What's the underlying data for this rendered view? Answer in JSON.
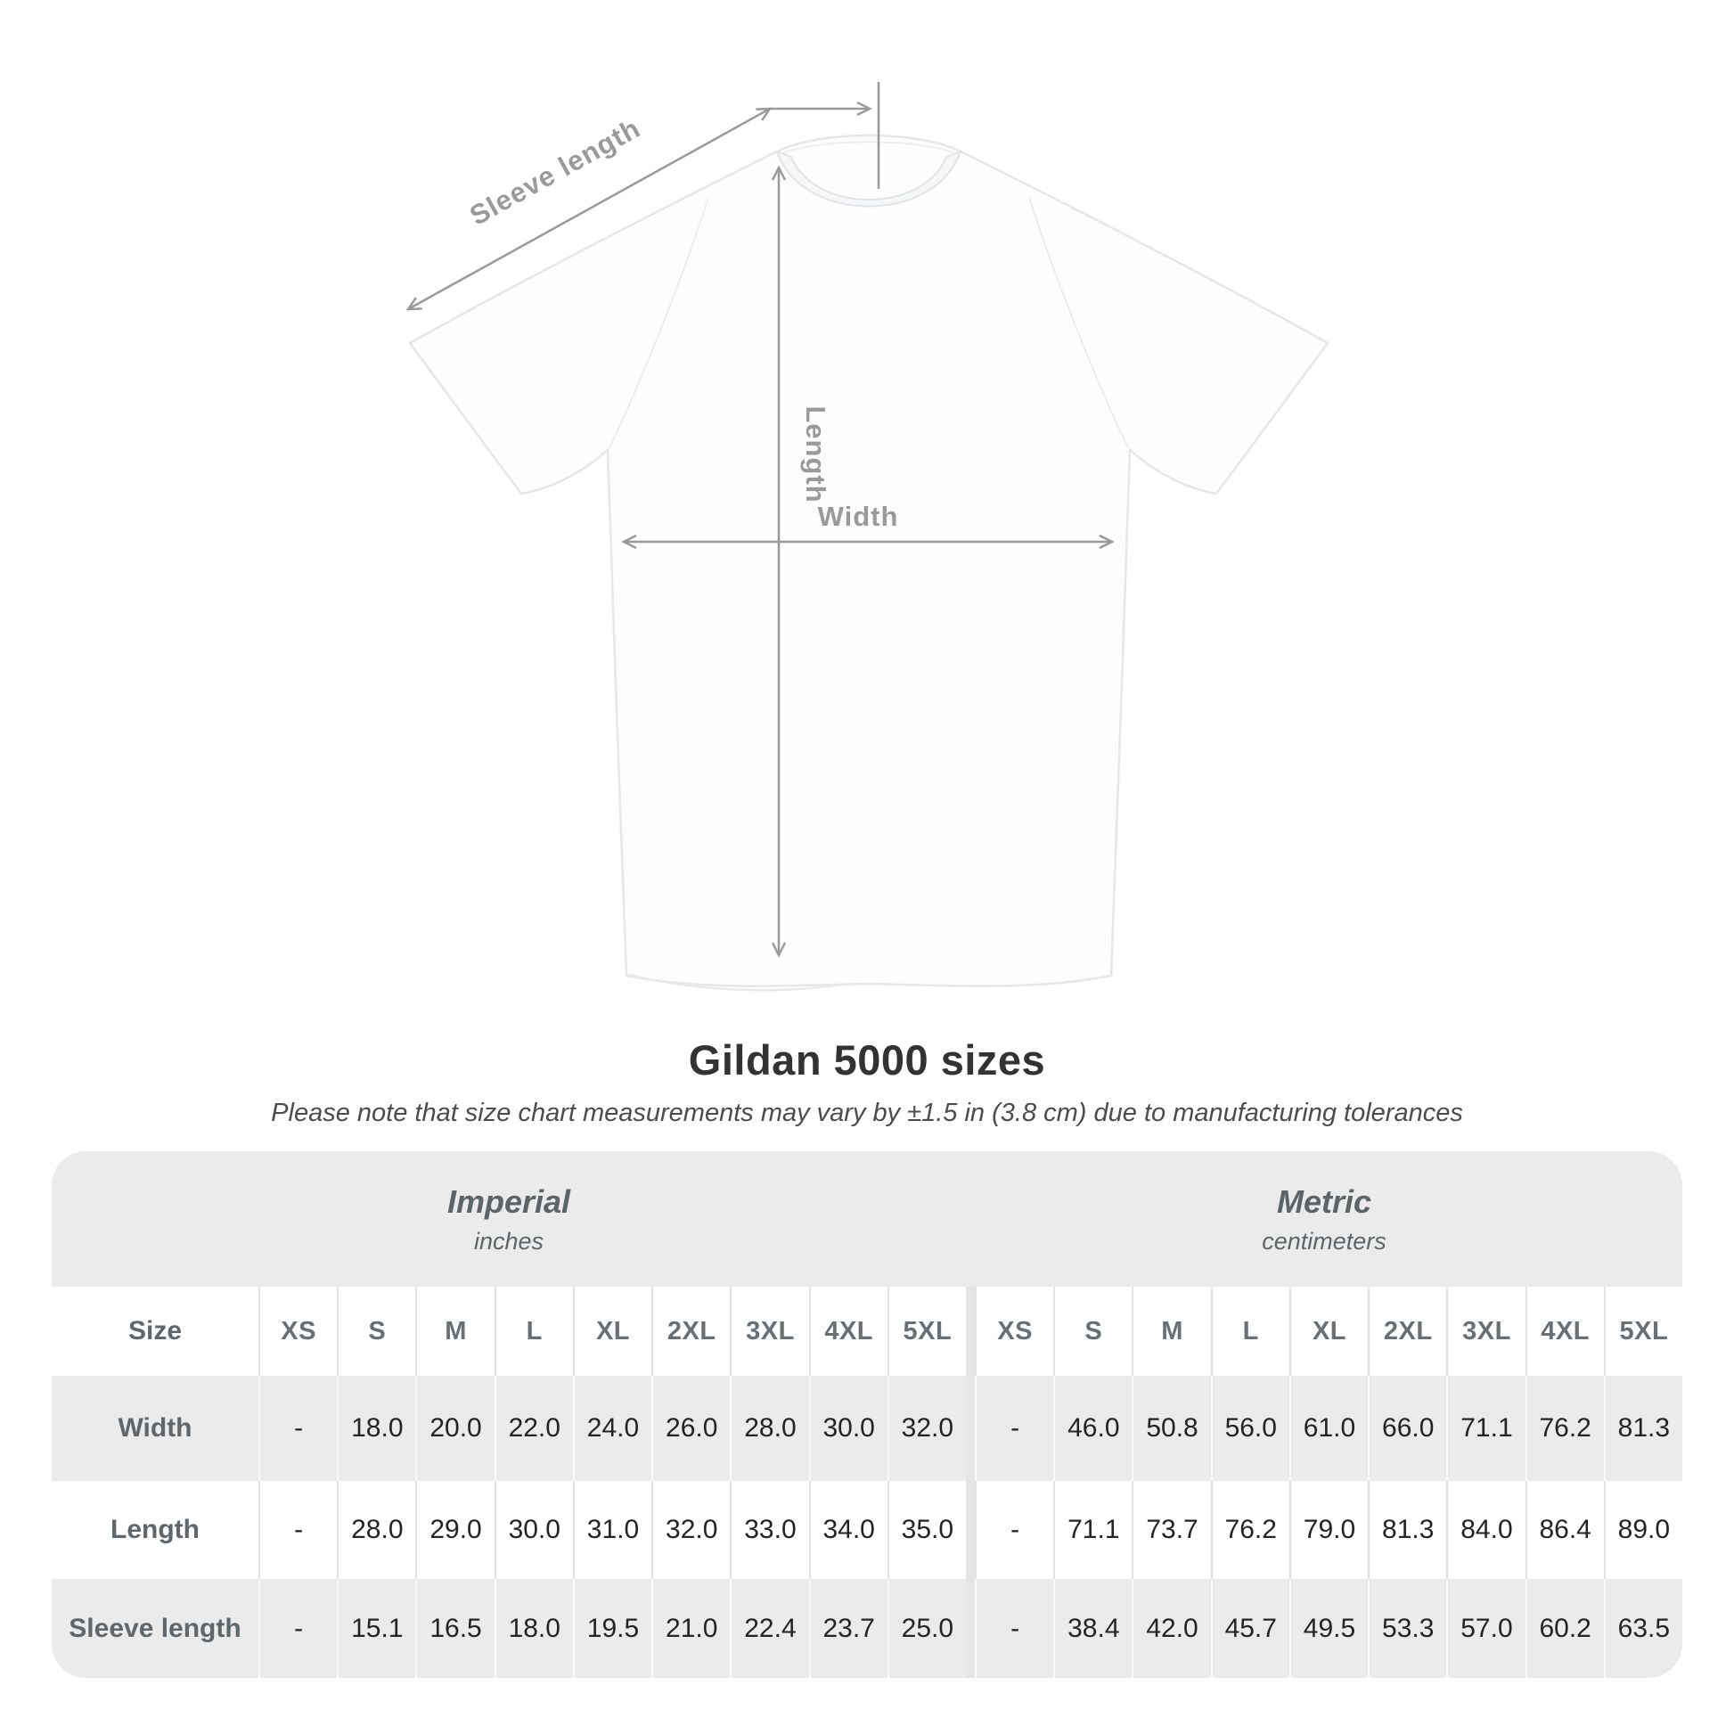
{
  "colors": {
    "arrow_gray": "#9a9a9a",
    "table_band_gray": "#ebebeb",
    "header_text_gray": "#5d6468",
    "value_text": "#242424",
    "title_text": "#333333"
  },
  "chart_data": {
    "type": "table",
    "title": "Gildan 5000 sizes",
    "note": "Please note that size chart measurements may vary by ±1.5 in (3.8 cm) due to manufacturing tolerances",
    "column_groups": [
      {
        "label": "Imperial",
        "unit": "inches"
      },
      {
        "label": "Metric",
        "unit": "centimeters"
      }
    ],
    "size_column_header": "Size",
    "sizes": [
      "XS",
      "S",
      "M",
      "L",
      "XL",
      "2XL",
      "3XL",
      "4XL",
      "5XL"
    ],
    "rows": [
      {
        "label": "Width",
        "imperial": [
          "-",
          "18.0",
          "20.0",
          "22.0",
          "24.0",
          "26.0",
          "28.0",
          "30.0",
          "32.0"
        ],
        "metric": [
          "-",
          "46.0",
          "50.8",
          "56.0",
          "61.0",
          "66.0",
          "71.1",
          "76.2",
          "81.3"
        ]
      },
      {
        "label": "Length",
        "imperial": [
          "-",
          "28.0",
          "29.0",
          "30.0",
          "31.0",
          "32.0",
          "33.0",
          "34.0",
          "35.0"
        ],
        "metric": [
          "-",
          "71.1",
          "73.7",
          "76.2",
          "79.0",
          "81.3",
          "84.0",
          "86.4",
          "89.0"
        ]
      },
      {
        "label": "Sleeve length",
        "imperial": [
          "-",
          "15.1",
          "16.5",
          "18.0",
          "19.5",
          "21.0",
          "22.4",
          "23.7",
          "25.0"
        ],
        "metric": [
          "-",
          "38.4",
          "42.0",
          "45.7",
          "49.5",
          "53.3",
          "57.0",
          "60.2",
          "63.5"
        ]
      }
    ]
  },
  "diagram": {
    "sleeve_length_label": "Sleeve length",
    "length_label": "Length",
    "width_label": "Width"
  }
}
